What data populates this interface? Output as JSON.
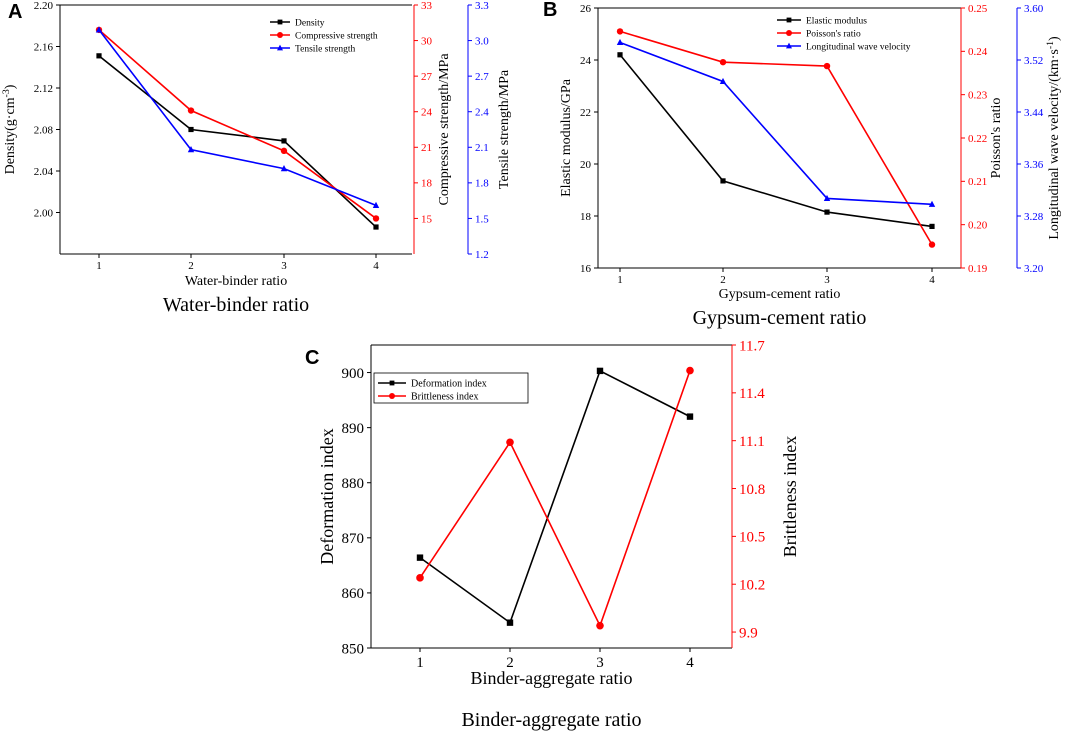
{
  "chart_data": [
    {
      "panel": "A",
      "type": "line",
      "caption": "Water-binder ratio",
      "xlabel": "Water-binder ratio",
      "categories": [
        "1",
        "2",
        "3",
        "4"
      ],
      "axes": {
        "left": {
          "label": "Density(g·cm-3)",
          "label_base": "Density(g·cm",
          "label_sup": "-3",
          "label_tail": ")",
          "ylim": [
            1.96,
            2.2
          ],
          "ticks": [
            "2.00",
            "2.04",
            "2.08",
            "2.12",
            "2.16",
            "2.20"
          ],
          "tick_values": [
            2.0,
            2.04,
            2.08,
            2.12,
            2.16,
            2.2
          ],
          "color": "#000000"
        },
        "right1": {
          "label": "Compressive strength/MPa",
          "ylim": [
            12,
            33
          ],
          "ticks": [
            "15",
            "18",
            "21",
            "24",
            "27",
            "30",
            "33"
          ],
          "tick_values": [
            15,
            18,
            21,
            24,
            27,
            30,
            33
          ],
          "color": "#ff0000"
        },
        "right2": {
          "label": "Tensile strength/MPa",
          "ylim": [
            1.2,
            3.3
          ],
          "ticks": [
            "1.2",
            "1.5",
            "1.8",
            "2.1",
            "2.4",
            "2.7",
            "3.0",
            "3.3"
          ],
          "tick_values": [
            1.2,
            1.5,
            1.8,
            2.1,
            2.4,
            2.7,
            3.0,
            3.3
          ],
          "color": "#0000ff"
        }
      },
      "series": [
        {
          "name": "Density",
          "axis": "left",
          "color": "#000000",
          "marker": "square",
          "values": [
            2.151,
            2.08,
            2.069,
            1.986
          ]
        },
        {
          "name": "Compressive strength",
          "axis": "right1",
          "color": "#ff0000",
          "marker": "circle",
          "values": [
            30.9,
            24.1,
            20.7,
            15.0
          ]
        },
        {
          "name": "Tensile strength",
          "axis": "right2",
          "color": "#0000ff",
          "marker": "triangle",
          "values": [
            3.09,
            2.08,
            1.92,
            1.61
          ]
        }
      ],
      "legend": [
        "Density",
        "Compressive strength",
        "Tensile strength"
      ]
    },
    {
      "panel": "B",
      "type": "line",
      "caption": "Gypsum-cement ratio",
      "xlabel": "Gypsum-cement ratio",
      "categories": [
        "1",
        "2",
        "3",
        "4"
      ],
      "axes": {
        "left": {
          "label": "Elastic modulus/GPa",
          "ylim": [
            16,
            26
          ],
          "ticks": [
            "16",
            "18",
            "20",
            "22",
            "24",
            "26"
          ],
          "tick_values": [
            16,
            18,
            20,
            22,
            24,
            26
          ],
          "color": "#000000"
        },
        "right1": {
          "label": "Poisson's ratio",
          "ylim": [
            0.19,
            0.25
          ],
          "ticks": [
            "0.19",
            "0.20",
            "0.21",
            "0.22",
            "0.23",
            "0.24",
            "0.25"
          ],
          "tick_values": [
            0.19,
            0.2,
            0.21,
            0.22,
            0.23,
            0.24,
            0.25
          ],
          "color": "#ff0000"
        },
        "right2": {
          "label": "Longitudinal wave velocity/(km·s-1)",
          "label_base": "Longitudinal wave velocity/(km·s",
          "label_sup": "-1",
          "label_tail": ")",
          "ylim": [
            3.2,
            3.6
          ],
          "ticks": [
            "3.20",
            "3.28",
            "3.36",
            "3.44",
            "3.52",
            "3.60"
          ],
          "tick_values": [
            3.2,
            3.28,
            3.36,
            3.44,
            3.52,
            3.6
          ],
          "color": "#0000ff"
        }
      },
      "series": [
        {
          "name": "Elastic modulus",
          "axis": "left",
          "color": "#000000",
          "marker": "square",
          "values": [
            24.2,
            19.35,
            18.15,
            17.6
          ]
        },
        {
          "name": "Poisson's ratio",
          "axis": "right1",
          "color": "#ff0000",
          "marker": "circle",
          "values": [
            0.2446,
            0.2375,
            0.2366,
            0.1954
          ]
        },
        {
          "name": "Longitudinal wave velocity",
          "axis": "right2",
          "color": "#0000ff",
          "marker": "triangle",
          "values": [
            3.547,
            3.487,
            3.307,
            3.298
          ]
        }
      ],
      "legend": [
        "Elastic modulus",
        "Poisson's ratio",
        "Longitudinal wave velocity"
      ]
    },
    {
      "panel": "C",
      "type": "line",
      "caption": "Binder-aggregate ratio",
      "xlabel": "Binder-aggregate ratio",
      "categories": [
        "1",
        "2",
        "3",
        "4"
      ],
      "axes": {
        "left": {
          "label": "Deformation index",
          "ylim": [
            850,
            905
          ],
          "ticks": [
            "850",
            "860",
            "870",
            "880",
            "890",
            "900"
          ],
          "tick_values": [
            850,
            860,
            870,
            880,
            890,
            900
          ],
          "color": "#000000"
        },
        "right1": {
          "label": "Brittleness index",
          "ylim": [
            9.8,
            11.7
          ],
          "ticks": [
            "9.9",
            "10.2",
            "10.5",
            "10.8",
            "11.1",
            "11.4",
            "11.7"
          ],
          "tick_values": [
            9.9,
            10.2,
            10.5,
            10.8,
            11.1,
            11.4,
            11.7
          ],
          "color": "#ff0000"
        }
      },
      "series": [
        {
          "name": "Deformation index",
          "axis": "left",
          "color": "#000000",
          "marker": "square",
          "values": [
            866.4,
            854.6,
            900.3,
            892.0
          ]
        },
        {
          "name": "Brittleness index",
          "axis": "right1",
          "color": "#ff0000",
          "marker": "circle",
          "values": [
            10.24,
            11.09,
            9.94,
            11.54
          ]
        }
      ],
      "legend": [
        "Deformation index",
        "Brittleness index"
      ]
    }
  ]
}
